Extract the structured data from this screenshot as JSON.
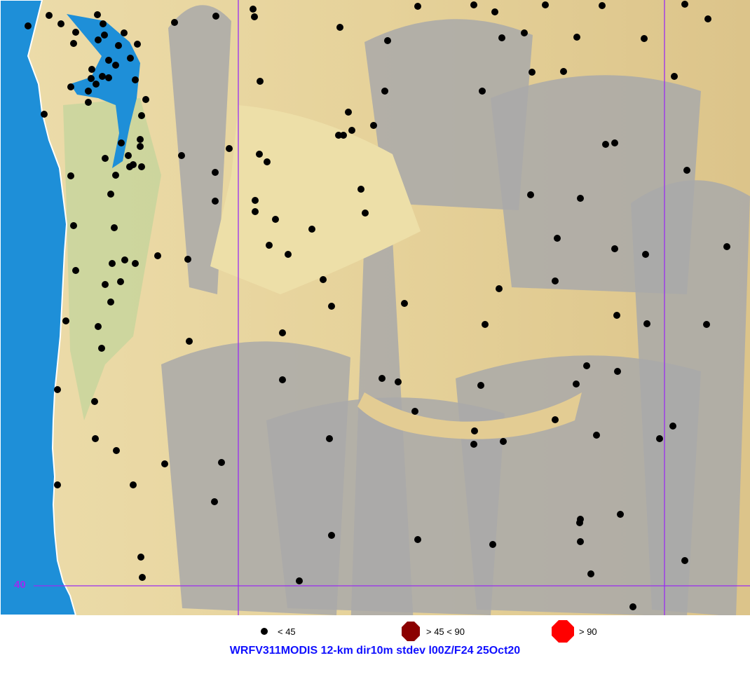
{
  "map": {
    "latitude_label": "40",
    "colors": {
      "ocean": "#1e8fd8",
      "land": "#e3cc93",
      "mountain": "#a9a9a9",
      "grid": "#9a2cf0",
      "station": "#000000"
    }
  },
  "legend": [
    {
      "label": "< 45",
      "color": "#000000",
      "icon": "small-dot-icon"
    },
    {
      "label": "> 45 < 90",
      "color": "#8b0000",
      "icon": "octagon-icon"
    },
    {
      "label": "> 90",
      "color": "#ff0000",
      "icon": "octagon-icon"
    }
  ],
  "caption": "WRFV311MODIS 12-km dir10m stdev l00Z/F24 25Oct20"
}
